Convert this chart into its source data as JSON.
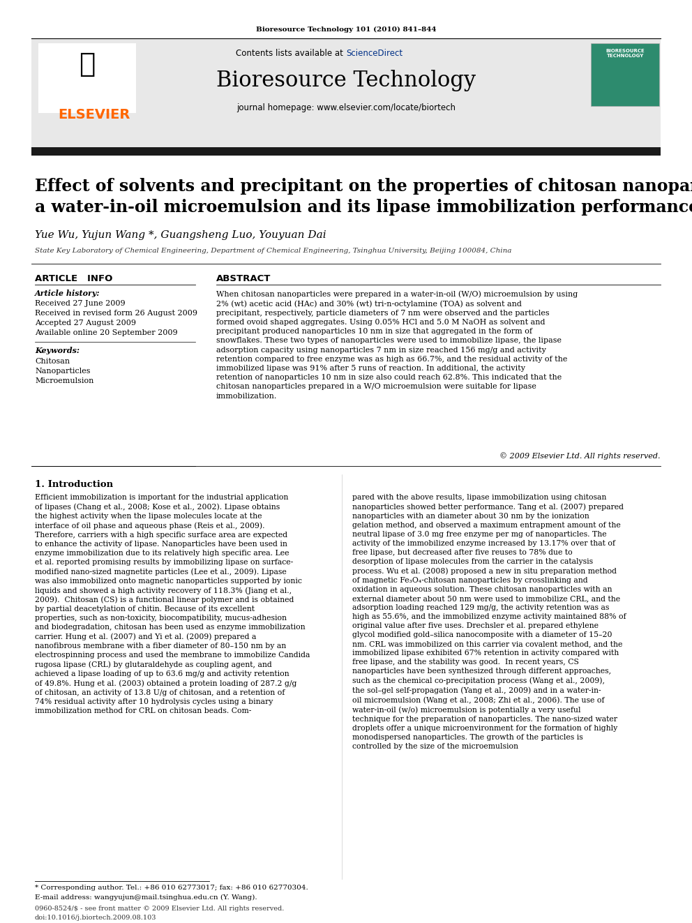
{
  "journal_ref": "Bioresource Technology 101 (2010) 841–844",
  "contents_text": "Contents lists available at ",
  "sciencedirect_text": "ScienceDirect",
  "journal_name": "Bioresource Technology",
  "journal_homepage": "journal homepage: www.elsevier.com/locate/biortech",
  "elsevier_color": "#FF6600",
  "sciencedirect_color": "#003087",
  "header_bg": "#E8E8E8",
  "title": "Effect of solvents and precipitant on the properties of chitosan nanoparticles in\na water-in-oil microemulsion and its lipase immobilization performance",
  "authors": "Yue Wu, Yujun Wang *, Guangsheng Luo, Youyuan Dai",
  "affiliation": "State Key Laboratory of Chemical Engineering, Department of Chemical Engineering, Tsinghua University, Beijing 100084, China",
  "article_info_header": "ARTICLE   INFO",
  "abstract_header": "ABSTRACT",
  "article_history_label": "Article history:",
  "received": "Received 27 June 2009",
  "received_revised": "Received in revised form 26 August 2009",
  "accepted": "Accepted 27 August 2009",
  "available": "Available online 20 September 2009",
  "keywords_label": "Keywords:",
  "keyword1": "Chitosan",
  "keyword2": "Nanoparticles",
  "keyword3": "Microemulsion",
  "abstract_text": "When chitosan nanoparticles were prepared in a water-in-oil (W/O) microemulsion by using 2% (wt) acetic acid (HAc) and 30% (wt) tri-n-octylamine (TOA) as solvent and precipitant, respectively, particle diameters of 7 nm were observed and the particles formed ovoid shaped aggregates. Using 0.05% HCl and 5.0 M NaOH as solvent and precipitant produced nanoparticles 10 nm in size that aggregated in the form of snowflakes. These two types of nanoparticles were used to immobilize lipase, the lipase adsorption capacity using nanoparticles 7 nm in size reached 156 mg/g and activity retention compared to free enzyme was as high as 66.7%, and the residual activity of the immobilized lipase was 91% after 5 runs of reaction. In additional, the activity retention of nanoparticles 10 nm in size also could reach 62.8%. This indicated that the chitosan nanoparticles prepared in a W/O microemulsion were suitable for lipase immobilization.",
  "copyright": "© 2009 Elsevier Ltd. All rights reserved.",
  "intro_header": "1. Introduction",
  "intro_col1": "Efficient immobilization is important for the industrial application of lipases (Chang et al., 2008; Kose et al., 2002). Lipase obtains the highest activity when the lipase molecules locate at the interface of oil phase and aqueous phase (Reis et al., 2009). Therefore, carriers with a high specific surface area are expected to enhance the activity of lipase. Nanoparticles have been used in enzyme immobilization due to its relatively high specific area. Lee et al. reported promising results by immobilizing lipase on surface-modified nano-sized magnetite particles (Lee et al., 2009). Lipase was also immobilized onto magnetic nanoparticles supported by ionic liquids and showed a high activity recovery of 118.3% (Jiang et al., 2009).\n\nChitosan (CS) is a functional linear polymer and is obtained by partial deacetylation of chitin. Because of its excellent properties, such as non-toxicity, biocompatibility, mucus-adhesion and biodegradation, chitosan has been used as enzyme immobilization carrier. Hung et al. (2007) and Yi et al. (2009) prepared a nanofibrous membrane with a fiber diameter of 80–150 nm by an electrospinning process and used the membrane to immobilize Candida rugosa lipase (CRL) by glutaraldehyde as coupling agent, and achieved a lipase loading of up to 63.6 mg/g and activity retention of 49.8%. Hung et al. (2003) obtained a protein loading of 287.2 g/g of chitosan, an activity of 13.8 U/g of chitosan, and a retention of 74% residual activity after 10 hydrolysis cycles using a binary immobilization method for CRL on chitosan beads. Com-",
  "intro_col2": "pared with the above results, lipase immobilization using chitosan nanoparticles showed better performance. Tang et al. (2007) prepared nanoparticles with an diameter about 30 nm by the ionization gelation method, and observed a maximum entrapment amount of the neutral lipase of 3.0 mg free enzyme per mg of nanoparticles. The activity of the immobilized enzyme increased by 13.17% over that of free lipase, but decreased after five reuses to 78% due to desorption of lipase molecules from the carrier in the catalysis process. Wu et al. (2008) proposed a new in situ preparation method of magnetic Fe₃O₄-chitosan nanoparticles by crosslinking and oxidation in aqueous solution. These chitosan nanoparticles with an external diameter about 50 nm were used to immobilize CRL, and the adsorption loading reached 129 mg/g, the activity retention was as high as 55.6%, and the immobilized enzyme activity maintained 88% of original value after five uses. Drechsler et al. prepared ethylene glycol modified gold–silica nanocomposite with a diameter of 15–20 nm. CRL was immobilized on this carrier via covalent method, and the immobilized lipase exhibited 67% retention in activity compared with free lipase, and the stability was good.\n\nIn recent years, CS nanoparticles have been synthesized through different approaches, such as the chemical co-precipitation process (Wang et al., 2009), the sol–gel self-propagation (Yang et al., 2009) and in a water-in-oil microemulsion (Wang et al., 2008; Zhi et al., 2006). The use of water-in-oil (w/o) microemulsion is potentially a very useful technique for the preparation of nanoparticles. The nano-sized water droplets offer a unique microenvironment for the formation of highly monodispersed nanoparticles. The growth of the particles is controlled by the size of the microemulsion",
  "footnote_star": "* Corresponding author. Tel.: +86 010 62773017; fax: +86 010 62770304.",
  "footnote_email": "E-mail address: wangyujun@mail.tsinghua.edu.cn (Y. Wang).",
  "issn_line": "0960-8524/$ - see front matter © 2009 Elsevier Ltd. All rights reserved.",
  "doi_line": "doi:10.1016/j.biortech.2009.08.103",
  "black_bar_color": "#1A1A1A",
  "thin_line_color": "#000000"
}
